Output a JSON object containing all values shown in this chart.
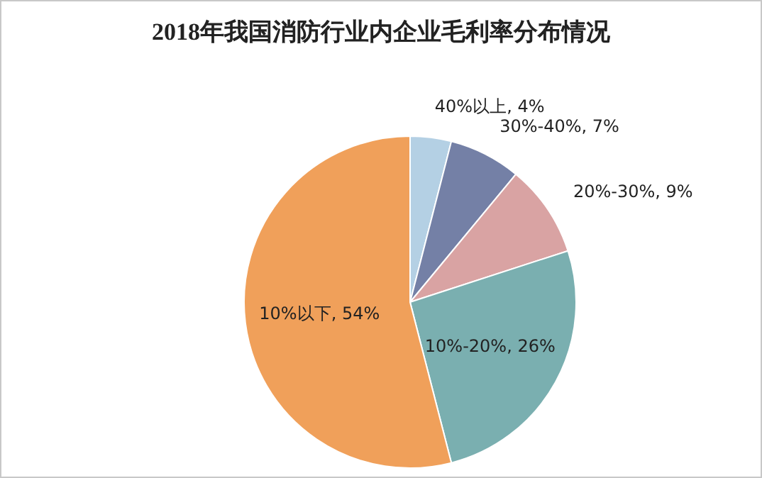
{
  "chart_data": {
    "type": "pie",
    "title": "2018年我国消防行业内企业毛利率分布情况",
    "categories": [
      "40%以上",
      "30%-40%",
      "20%-30%",
      "10%-20%",
      "10%以下"
    ],
    "values": [
      4,
      7,
      9,
      26,
      54
    ],
    "value_labels": [
      "4%",
      "7%",
      "9%",
      "26%",
      "54%"
    ],
    "colors": [
      "#b4d0e4",
      "#7480a6",
      "#d9a3a3",
      "#7aafb0",
      "#f0a05a"
    ],
    "legend": false
  }
}
